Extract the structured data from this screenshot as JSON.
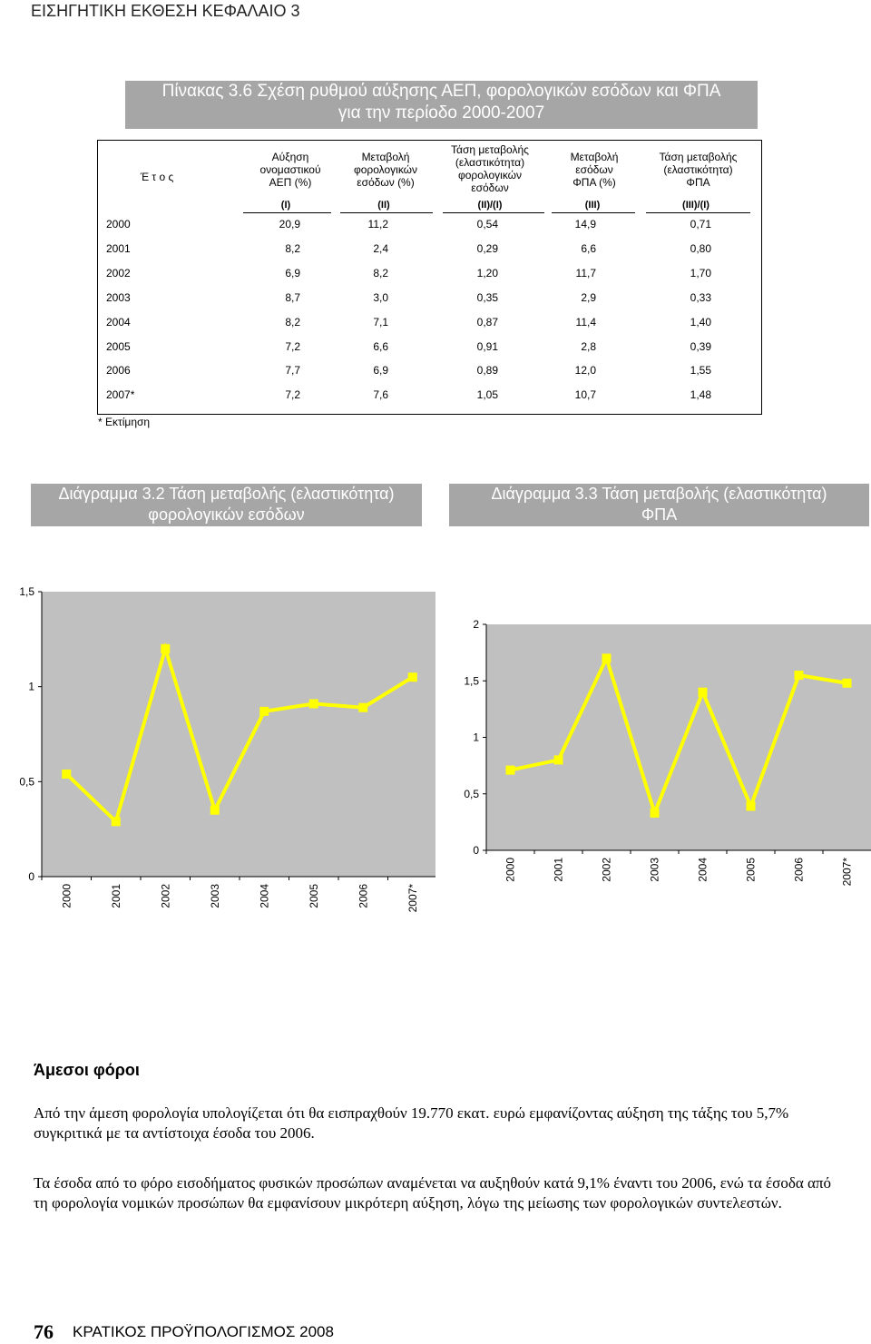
{
  "header": {
    "title": "ΕΙΣΗΓΗΤΙΚΗ ΕΚΘΕΣΗ ΚΕΦΑΛΑΙΟ 3"
  },
  "table": {
    "title_line1": "Πίνακας 3.6 Σχέση ρυθμού αύξησης ΑΕΠ, φορολογικών εσόδων και ΦΠΑ",
    "title_line2": "για την περίοδο 2000-2007",
    "col_year": "Έ τ ο ς",
    "col1_lines": [
      "Αύξηση",
      "ονομαστικού",
      "ΑΕΠ (%)"
    ],
    "col2_lines": [
      "Μεταβολή",
      "φορολογικών",
      "εσόδων (%)"
    ],
    "col3_lines": [
      "Τάση μεταβολής",
      "(ελαστικότητα)",
      "φορολογικών",
      "εσόδων"
    ],
    "col4_lines": [
      "Μεταβολή",
      "εσόδων",
      "ΦΠΑ (%)"
    ],
    "col5_lines": [
      "Τάση μεταβολής",
      "(ελαστικότητα)",
      "ΦΠΑ"
    ],
    "roman": [
      "(I)",
      "(II)",
      "(II)/(I)",
      "(III)",
      "(III)/(I)"
    ],
    "rows": [
      [
        "2000",
        "20,9",
        "11,2",
        "0,54",
        "14,9",
        "0,71"
      ],
      [
        "2001",
        "8,2",
        "2,4",
        "0,29",
        "6,6",
        "0,80"
      ],
      [
        "2002",
        "6,9",
        "8,2",
        "1,20",
        "11,7",
        "1,70"
      ],
      [
        "2003",
        "8,7",
        "3,0",
        "0,35",
        "2,9",
        "0,33"
      ],
      [
        "2004",
        "8,2",
        "7,1",
        "0,87",
        "11,4",
        "1,40"
      ],
      [
        "2005",
        "7,2",
        "6,6",
        "0,91",
        "2,8",
        "0,39"
      ],
      [
        "2006",
        "7,7",
        "6,9",
        "0,89",
        "12,0",
        "1,55"
      ],
      [
        "2007*",
        "7,2",
        "7,6",
        "1,05",
        "10,7",
        "1,48"
      ]
    ],
    "note": "* Εκτίμηση"
  },
  "diagram1": {
    "title_line1": "Διάγραμμα 3.2 Τάση μεταβολής (ελαστικότητα)",
    "title_line2": "φορολογικών εσόδων"
  },
  "diagram2": {
    "title_line1": "Διάγραμμα 3.3 Τάση μεταβολής (ελαστικότητα)",
    "title_line2": "ΦΠΑ"
  },
  "chart_data": [
    {
      "type": "line",
      "x": [
        "2000",
        "2001",
        "2002",
        "2003",
        "2004",
        "2005",
        "2006",
        "2007*"
      ],
      "values": [
        0.54,
        0.29,
        1.2,
        0.35,
        0.87,
        0.91,
        0.89,
        1.05
      ],
      "ylim": [
        0,
        1.5
      ],
      "yticks": [
        "0",
        "0,5",
        "1",
        "1,5"
      ],
      "line_color": "#ffff00",
      "plot_bg": "#c0c0c0",
      "grid": false,
      "legend": "none"
    },
    {
      "type": "line",
      "x": [
        "2000",
        "2001",
        "2002",
        "2003",
        "2004",
        "2005",
        "2006",
        "2007*"
      ],
      "values": [
        0.71,
        0.8,
        1.7,
        0.33,
        1.4,
        0.39,
        1.55,
        1.48
      ],
      "ylim": [
        0,
        2
      ],
      "yticks": [
        "0",
        "0,5",
        "1",
        "1,5",
        "2"
      ],
      "line_color": "#ffff00",
      "plot_bg": "#c0c0c0",
      "grid": false,
      "legend": "none"
    }
  ],
  "text": {
    "heading": "Άμεσοι φόροι",
    "para1": "Από την άμεση φορολογία υπολογίζεται ότι θα εισπραχθούν 19.770 εκατ. ευρώ εμφανίζοντας αύξηση της τάξης του 5,7% συγκριτικά με τα αντίστοιχα έσοδα του 2006.",
    "para2": "Τα έσοδα από το φόρο εισοδήματος φυσικών προσώπων αναμένεται να αυξηθούν κατά 9,1% έναντι του 2006, ενώ τα έσοδα από τη φορολογία νομικών προσώπων θα εμφανίσουν μικρότερη αύξηση, λόγω της μείωσης των φορολογικών συντελεστών."
  },
  "footer": {
    "page_number": "76",
    "text": "ΚΡΑΤΙΚΟΣ ΠΡΟΫΠΟΛΟΓΙΣΜΟΣ 2008"
  }
}
